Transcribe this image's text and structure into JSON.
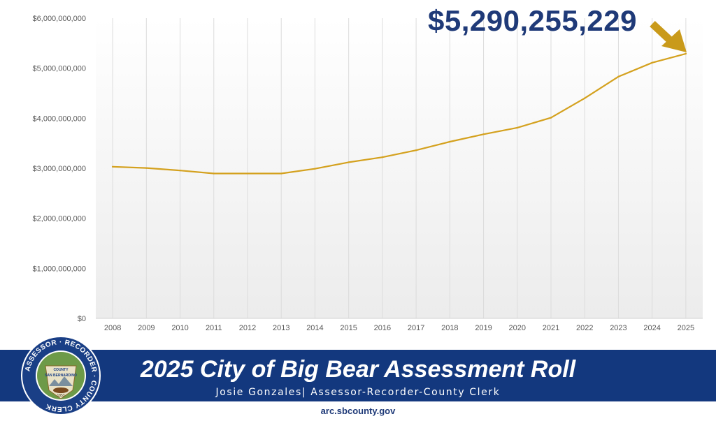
{
  "chart_data": {
    "type": "line",
    "categories": [
      "2008",
      "2009",
      "2010",
      "2011",
      "2012",
      "2013",
      "2014",
      "2015",
      "2016",
      "2017",
      "2018",
      "2019",
      "2020",
      "2021",
      "2022",
      "2023",
      "2024",
      "2025"
    ],
    "series": [
      {
        "values": [
          3030000000,
          3005000000,
          2955000000,
          2895000000,
          2895000000,
          2895000000,
          2990000000,
          3120000000,
          3220000000,
          3360000000,
          3530000000,
          3680000000,
          3810000000,
          4010000000,
          4400000000,
          4830000000,
          5110000000,
          5290255229
        ]
      }
    ],
    "ylim": [
      0,
      6000000000
    ],
    "yticks": [
      "$0",
      "$1,000,000,000",
      "$2,000,000,000",
      "$3,000,000,000",
      "$4,000,000,000",
      "$5,000,000,000",
      "$6,000,000,000"
    ],
    "line_color": "#d4a11e",
    "grid": "vertical",
    "title": "",
    "xlabel": "",
    "ylabel": ""
  },
  "callout": {
    "value_text": "$5,290,255,229",
    "text_color": "#1f3a78",
    "arrow_color": "#c99a1a"
  },
  "banner": {
    "title": "2025 City of Big Bear Assessment Roll",
    "subtitle": "Josie Gonzales| Assessor-Recorder-County Clerk",
    "background": "#13387e"
  },
  "seal": {
    "ring_text": "ASSESSOR · RECORDER · COUNTY CLERK",
    "inner_top": "COUNTY",
    "inner_mid": "SAN BERNARDINO",
    "inner_bottom": "1853",
    "icon": "county-seal-icon"
  },
  "footer": {
    "website": "arc.sbcounty.gov"
  }
}
